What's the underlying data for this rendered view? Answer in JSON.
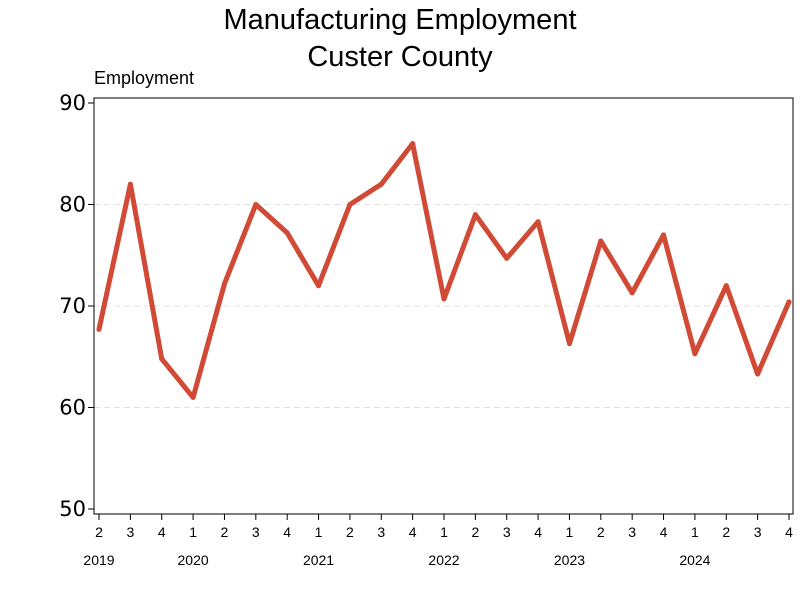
{
  "chart_data": {
    "type": "line",
    "title": "Manufacturing Employment",
    "subtitle": "Custer County",
    "ylabel": "Employment",
    "xlabel": "",
    "ylim": [
      50,
      90
    ],
    "yticks": [
      50,
      60,
      70,
      80,
      90
    ],
    "grid": "horizontal dashed",
    "line_color": "#d04a35",
    "x": [
      "2019 Q2",
      "2019 Q3",
      "2019 Q4",
      "2020 Q1",
      "2020 Q2",
      "2020 Q3",
      "2020 Q4",
      "2021 Q1",
      "2021 Q2",
      "2021 Q3",
      "2021 Q4",
      "2022 Q1",
      "2022 Q2",
      "2022 Q3",
      "2022 Q4",
      "2023 Q1",
      "2023 Q2",
      "2023 Q3",
      "2023 Q4",
      "2024 Q1",
      "2024 Q2",
      "2024 Q3",
      "2024 Q4"
    ],
    "quarter_labels": [
      "2",
      "3",
      "4",
      "1",
      "2",
      "3",
      "4",
      "1",
      "2",
      "3",
      "4",
      "1",
      "2",
      "3",
      "4",
      "1",
      "2",
      "3",
      "4",
      "1",
      "2",
      "3",
      "4"
    ],
    "year_labels": [
      {
        "label": "2019",
        "index": 0
      },
      {
        "label": "2020",
        "index": 3
      },
      {
        "label": "2021",
        "index": 7
      },
      {
        "label": "2022",
        "index": 11
      },
      {
        "label": "2023",
        "index": 15
      },
      {
        "label": "2024",
        "index": 19
      }
    ],
    "values": [
      67.7,
      82.0,
      64.8,
      61.0,
      72.2,
      80.0,
      77.2,
      72.0,
      80.0,
      82.0,
      86.0,
      70.7,
      79.0,
      74.7,
      78.3,
      66.3,
      76.4,
      71.3,
      77.0,
      65.3,
      72.0,
      63.3,
      70.4
    ]
  }
}
